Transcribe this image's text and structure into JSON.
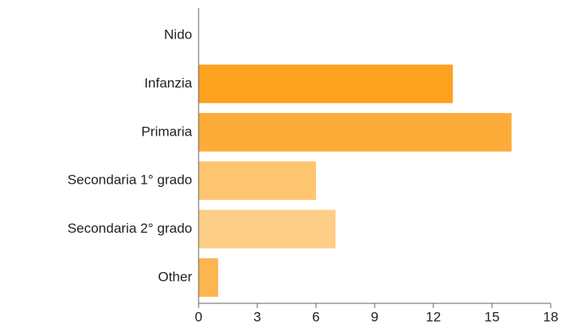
{
  "chart_data": {
    "type": "hbar",
    "categories": [
      "Nido",
      "Infanzia",
      "Primaria",
      "Secondaria 1° grado",
      "Secondaria 2° grado",
      "Other"
    ],
    "values": [
      0,
      13,
      16,
      6,
      7,
      1
    ],
    "colors": [
      "#fca21f",
      "#fca21f",
      "#fdac3a",
      "#fec570",
      "#fecd86",
      "#fdb54e"
    ],
    "xlim": [
      0,
      18
    ],
    "xticks": [
      0,
      3,
      6,
      9,
      12,
      15,
      18
    ],
    "grid": false
  }
}
